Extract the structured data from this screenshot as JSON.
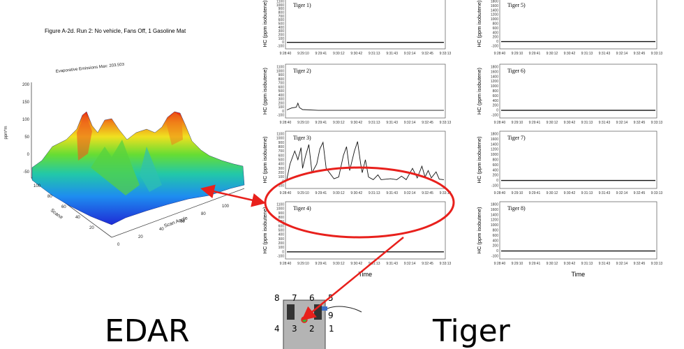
{
  "edar": {
    "figure_title": "Figure A-2d.  Run 2: No vehicle, Fans Off, 1 Gasoline Mat",
    "subtitle": "Evaporative Emissions Max:  203.503",
    "z_axis_label": "ppm*m",
    "z_ticks": [
      "200",
      "150",
      "100",
      "50",
      "0",
      "-50"
    ],
    "x_axis_label": "Scan Angle",
    "x_ticks": [
      "0",
      "20",
      "40",
      "60",
      "80",
      "100"
    ],
    "y_axis_label": "Scan#",
    "y_ticks": [
      "100",
      "80",
      "60",
      "40",
      "20"
    ],
    "caption": "EDAR"
  },
  "tiger": {
    "caption": "Tiger",
    "y_axis_label": "HC (ppm isobutene)",
    "x_axis_label": "Time",
    "y_ticks_full": [
      "1100",
      "1000",
      "900",
      "800",
      "700",
      "600",
      "500",
      "400",
      "300",
      "200",
      "100",
      "0",
      "-100"
    ],
    "y_ticks_right": [
      "1800",
      "1600",
      "1400",
      "1200",
      "1000",
      "800",
      "600",
      "400",
      "200",
      "0",
      "-100"
    ],
    "x_ticks": [
      "9:28:40",
      "9:29:10",
      "9:29:41",
      "9:30:12",
      "9:30:42",
      "9:31:13",
      "9:31:43",
      "9:32:14",
      "9:32:45",
      "9:33:13"
    ],
    "panels": [
      {
        "title": "Tiger 1)"
      },
      {
        "title": "Tiger 2)"
      },
      {
        "title": "Tiger 3)"
      },
      {
        "title": "Tiger 4)"
      },
      {
        "title": "Tiger 5)"
      },
      {
        "title": "Tiger 6)"
      },
      {
        "title": "Tiger 7)"
      },
      {
        "title": "Tiger 8)"
      }
    ]
  },
  "sensor_layout": {
    "nodes": [
      "1",
      "2",
      "3",
      "4",
      "5",
      "6",
      "7",
      "8",
      "9"
    ]
  },
  "colors": {
    "highlight": "#e8201c",
    "trace": "#111111",
    "box_fill": "#b4b4b4"
  }
}
